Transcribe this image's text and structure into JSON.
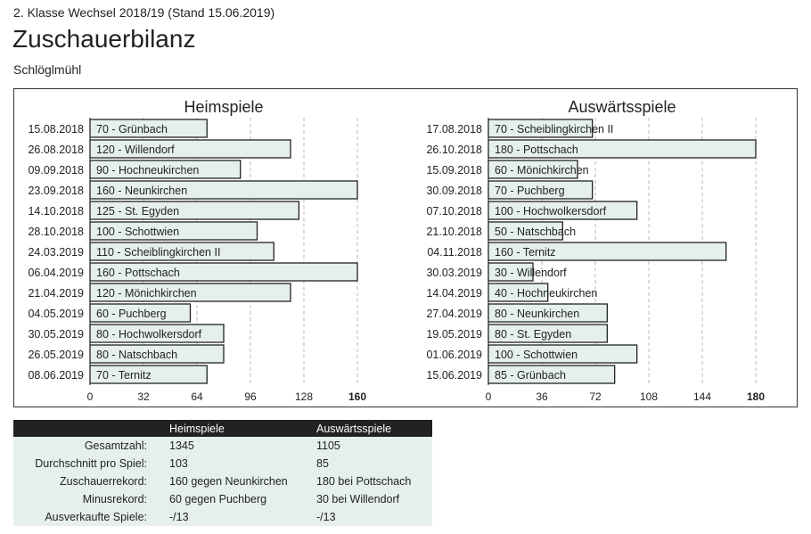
{
  "header": {
    "subtitle": "2. Klasse Wechsel 2018/19 (Stand 15.06.2019)",
    "title": "Zuschauerbilanz",
    "team": "Schlöglmühl"
  },
  "colors": {
    "bar_fill": "#e6f0eb",
    "bar_stroke": "#222222",
    "grid": "#bbbbbb",
    "table_header": "#222222"
  },
  "chart_data": [
    {
      "type": "bar",
      "orientation": "horizontal",
      "title": "Heimspiele",
      "xlim": [
        0,
        160
      ],
      "ticks": [
        0,
        32,
        64,
        96,
        128,
        160
      ],
      "grid": "vertical dashed",
      "categories": [
        "15.08.2018",
        "26.08.2018",
        "09.09.2018",
        "23.09.2018",
        "14.10.2018",
        "28.10.2018",
        "24.03.2019",
        "06.04.2019",
        "21.04.2019",
        "04.05.2019",
        "30.05.2019",
        "26.05.2019",
        "08.06.2019"
      ],
      "values": [
        70,
        120,
        90,
        160,
        125,
        100,
        110,
        160,
        120,
        60,
        80,
        80,
        70
      ],
      "labels": [
        "70 - Grünbach",
        "120 - Willendorf",
        "90 - Hochneukirchen",
        "160 - Neunkirchen",
        "125 - St. Egyden",
        "100 - Schottwien",
        "110 - Scheiblingkirchen II",
        "160 - Pottschach",
        "120 - Mönichkirchen",
        "60 - Puchberg",
        "80 - Hochwolkersdorf",
        "80 - Natschbach",
        "70 - Ternitz"
      ]
    },
    {
      "type": "bar",
      "orientation": "horizontal",
      "title": "Auswärtsspiele",
      "xlim": [
        0,
        180
      ],
      "ticks": [
        0,
        36,
        72,
        108,
        144,
        180
      ],
      "grid": "vertical dashed",
      "categories": [
        "17.08.2018",
        "26.10.2018",
        "15.09.2018",
        "30.09.2018",
        "07.10.2018",
        "21.10.2018",
        "04.11.2018",
        "30.03.2019",
        "14.04.2019",
        "27.04.2019",
        "19.05.2019",
        "01.06.2019",
        "15.06.2019"
      ],
      "values": [
        70,
        180,
        60,
        70,
        100,
        50,
        160,
        30,
        40,
        80,
        80,
        100,
        85
      ],
      "labels": [
        "70 - Scheiblingkirchen II",
        "180 - Pottschach",
        "60 - Mönichkirchen",
        "70 - Puchberg",
        "100 - Hochwolkersdorf",
        "50 - Natschbach",
        "160 - Ternitz",
        "30 - Willendorf",
        "40 - Hochneukirchen",
        "80 - Neunkirchen",
        "80 - St. Egyden",
        "100 - Schottwien",
        "85 - Grünbach"
      ]
    }
  ],
  "stats": {
    "columns": [
      "",
      "Heimspiele",
      "Auswärtsspiele"
    ],
    "rows": [
      [
        "Gesamtzahl:",
        "1345",
        "1105"
      ],
      [
        "Durchschnitt pro Spiel:",
        "103",
        "85"
      ],
      [
        "Zuschauerrekord:",
        "160 gegen Neunkirchen",
        "180 bei Pottschach"
      ],
      [
        "Minusrekord:",
        "60 gegen Puchberg",
        "30 bei Willendorf"
      ],
      [
        "Ausverkaufte Spiele:",
        "-/13",
        "-/13"
      ]
    ]
  }
}
